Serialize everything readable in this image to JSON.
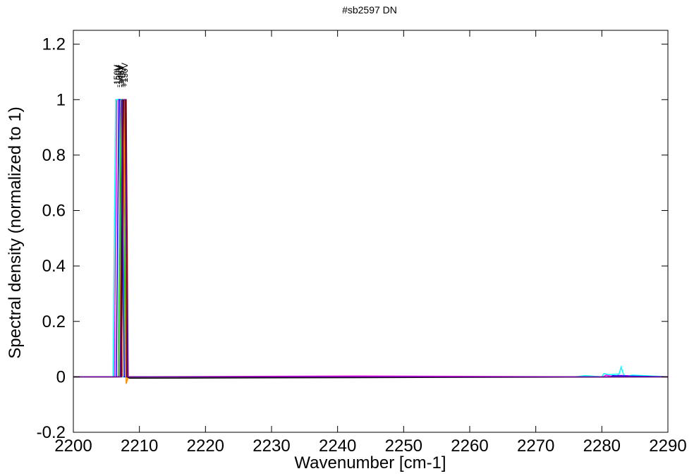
{
  "chart_data": {
    "type": "line",
    "title": "#sb2597 DN",
    "xlabel": "Wavenumber [cm-1]",
    "ylabel": "Spectral density (normalized to 1)",
    "xlim": [
      2200,
      2290
    ],
    "ylim": [
      -0.2,
      1.25
    ],
    "xticks": [
      2200,
      2210,
      2220,
      2230,
      2240,
      2250,
      2260,
      2270,
      2280,
      2290
    ],
    "yticks": [
      -0.2,
      0,
      0.2,
      0.4,
      0.6,
      0.8,
      1,
      1.2
    ],
    "ytick_labels": [
      "-0.2",
      "0",
      "0.2",
      "0.4",
      "0.6",
      "0.8",
      "1",
      "1.2"
    ],
    "grid": false,
    "peak_labels": [
      {
        "x": 2206.6,
        "text": "-150V",
        "color": "#000000"
      },
      {
        "x": 2206.9,
        "text": "-100V",
        "color": "#000000"
      },
      {
        "x": 2207.2,
        "text": "-145V",
        "color": "#000000"
      },
      {
        "x": 2207.5,
        "text": "+10V",
        "color": "#000000"
      },
      {
        "x": 2207.8,
        "text": "+150V",
        "color": "#000000"
      }
    ],
    "series": [
      {
        "color": "#ff00ff",
        "x": [
          2200,
          2206.2,
          2206.6,
          2207.0,
          2207.4,
          2243,
          2280.2,
          2280.6,
          2282.0,
          2282.4,
          2290
        ],
        "y": [
          0,
          0,
          1,
          1,
          0,
          0.003,
          0,
          0.006,
          0,
          0.005,
          0
        ]
      },
      {
        "color": "#00ffff",
        "x": [
          2200,
          2206.0,
          2206.4,
          2206.9,
          2207.3,
          2276,
          2277.4,
          2280.0,
          2280.3,
          2281.0,
          2282.6,
          2282.9,
          2283.4,
          2284.6,
          2290
        ],
        "y": [
          0,
          0,
          1,
          1,
          0,
          0,
          0.004,
          0,
          0.012,
          0.008,
          0.01,
          0.035,
          0,
          0.006,
          0
        ]
      },
      {
        "color": "#0000ff",
        "x": [
          2200,
          2206.5,
          2206.9,
          2207.3,
          2207.7,
          2281.3,
          2281.6,
          2290
        ],
        "y": [
          0,
          0,
          1,
          1,
          0,
          0,
          0.004,
          0
        ]
      },
      {
        "color": "#00cc00",
        "x": [
          2200,
          2206.8,
          2207.2,
          2207.5,
          2207.9,
          2290
        ],
        "y": [
          0,
          0,
          1,
          1,
          0,
          0
        ]
      },
      {
        "color": "#ff8c00",
        "x": [
          2200,
          2207.0,
          2207.4,
          2207.7,
          2208.0,
          2208.3,
          2290
        ],
        "y": [
          0,
          0,
          1,
          1,
          -0.025,
          0,
          0
        ]
      },
      {
        "color": "#000000",
        "x": [
          2200,
          2207.2,
          2207.5,
          2207.9,
          2208.1,
          2208.5,
          2290
        ],
        "y": [
          0,
          0,
          1,
          1,
          0,
          -0.005,
          0
        ]
      },
      {
        "color": "#8b0000",
        "x": [
          2200,
          2207.3,
          2207.6,
          2208.0,
          2208.3,
          2290
        ],
        "y": [
          0,
          0,
          1,
          1,
          0,
          0
        ]
      },
      {
        "color": "#6a0dad",
        "x": [
          2200,
          2207.1,
          2207.4,
          2207.8,
          2208.2,
          2290
        ],
        "y": [
          0,
          0,
          1,
          1,
          0,
          0
        ]
      }
    ]
  }
}
